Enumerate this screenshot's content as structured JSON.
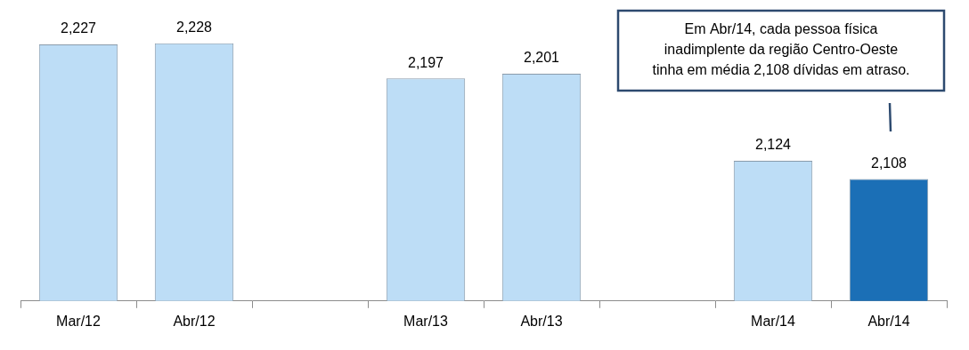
{
  "chart_data": {
    "type": "bar",
    "categories": [
      "Mar/12",
      "Abr/12",
      null,
      "Mar/13",
      "Abr/13",
      null,
      "Mar/14",
      "Abr/14"
    ],
    "values": [
      2.227,
      2.228,
      null,
      2.197,
      2.201,
      null,
      2.124,
      2.108
    ],
    "value_labels": [
      "2,227",
      "2,228",
      null,
      "2,197",
      "2,201",
      null,
      "2,124",
      "2,108"
    ],
    "colors": [
      "#bdddf6",
      "#bdddf6",
      null,
      "#bdddf6",
      "#bdddf6",
      null,
      "#bdddf6",
      "#1b6fb6"
    ],
    "data_labels": true,
    "tick_labels": "x",
    "grid": false,
    "ylim": [
      2.0,
      2.26
    ],
    "annotation": [
      "Em Abr/14, cada pessoa física",
      "inadimplente da região Centro-Oeste",
      "tinha em média 2,108 dívidas em atraso."
    ]
  }
}
